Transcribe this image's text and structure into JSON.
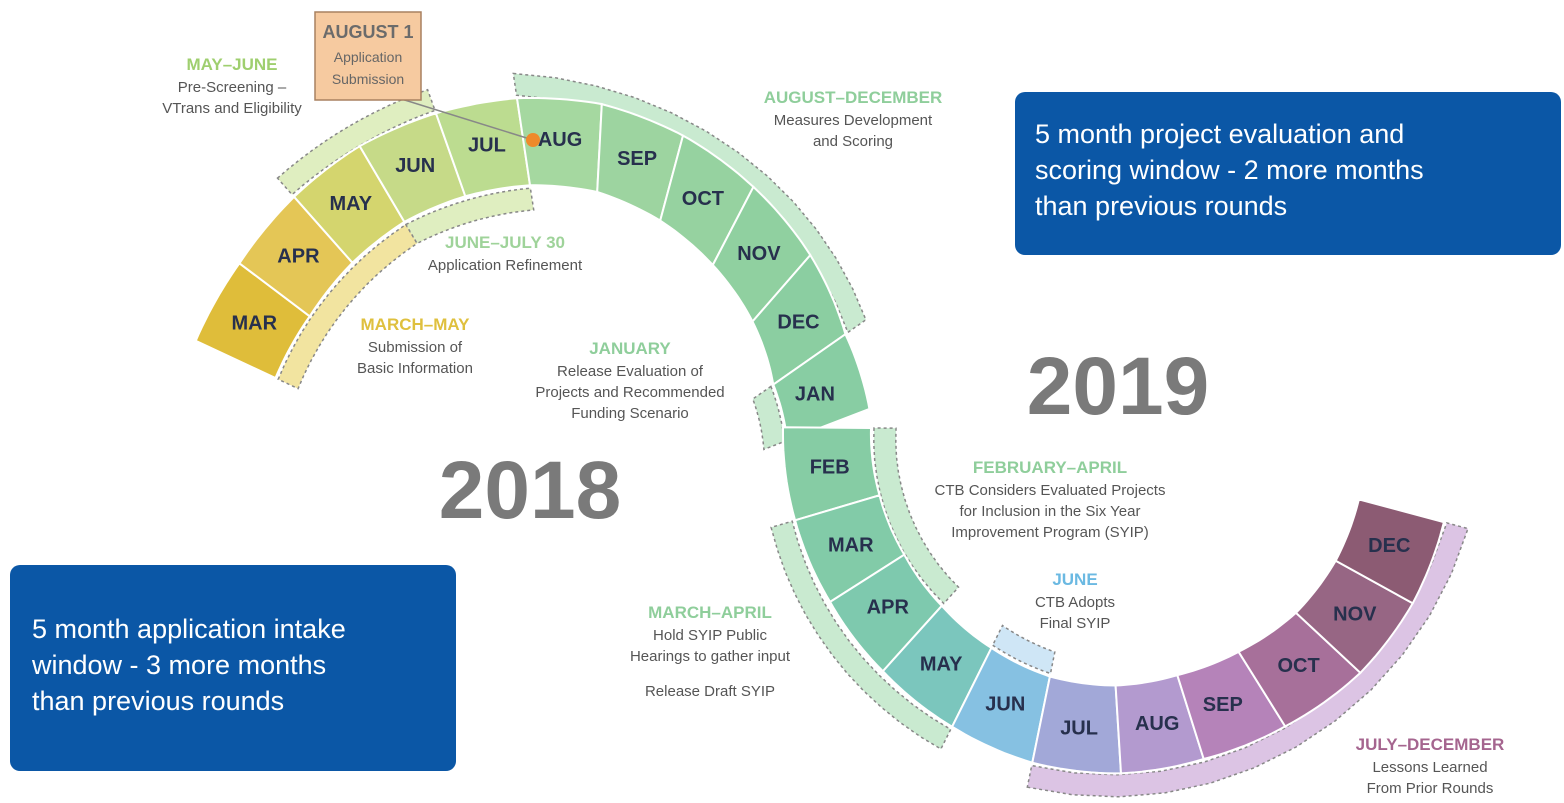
{
  "callout": {
    "title": "AUGUST 1",
    "lines": [
      "Application",
      "Submission"
    ]
  },
  "years": [
    "2018",
    "2019"
  ],
  "arcs": [
    {
      "months": [
        "MAR",
        "APR",
        "MAY",
        "JUN",
        "JUL",
        "AUG",
        "SEP",
        "OCT",
        "NOV",
        "DEC",
        "JAN"
      ]
    },
    {
      "months": [
        "FEB",
        "MAR",
        "APR",
        "MAY",
        "JUN",
        "JUL",
        "AUG",
        "SEP",
        "OCT",
        "NOV",
        "DEC"
      ]
    }
  ],
  "phases": [
    {
      "heading": "MAY–JUNE",
      "lines": [
        "Pre-Screening –",
        "VTrans and Eligibility"
      ]
    },
    {
      "heading": "AUGUST–DECEMBER",
      "lines": [
        "Measures Development",
        "and Scoring"
      ]
    },
    {
      "heading": "JUNE–JULY 30",
      "lines": [
        "Application Refinement"
      ]
    },
    {
      "heading": "MARCH–MAY",
      "lines": [
        "Submission of",
        "Basic Information"
      ]
    },
    {
      "heading": "JANUARY",
      "lines": [
        "Release Evaluation of",
        "Projects and Recommended",
        "Funding Scenario"
      ]
    },
    {
      "heading": "FEBRUARY–APRIL",
      "lines": [
        "CTB Considers Evaluated Projects",
        "for Inclusion in the Six Year",
        "Improvement Program (SYIP)"
      ]
    },
    {
      "heading": "JUNE",
      "lines": [
        "CTB Adopts",
        "Final SYIP"
      ]
    },
    {
      "heading": "MARCH–APRIL",
      "lines": [
        "Hold SYIP Public",
        "Hearings to gather input",
        "Release Draft SYIP"
      ]
    },
    {
      "heading": "JULY–DECEMBER",
      "lines": [
        "Lessons Learned",
        "From Prior Rounds"
      ]
    }
  ],
  "boxes": [
    {
      "lines": [
        "5 month project evaluation and",
        "scoring window - 2 more months",
        "than previous rounds"
      ]
    },
    {
      "lines": [
        "5 month application intake",
        "window - 3 more months",
        "than previous rounds"
      ]
    }
  ]
}
